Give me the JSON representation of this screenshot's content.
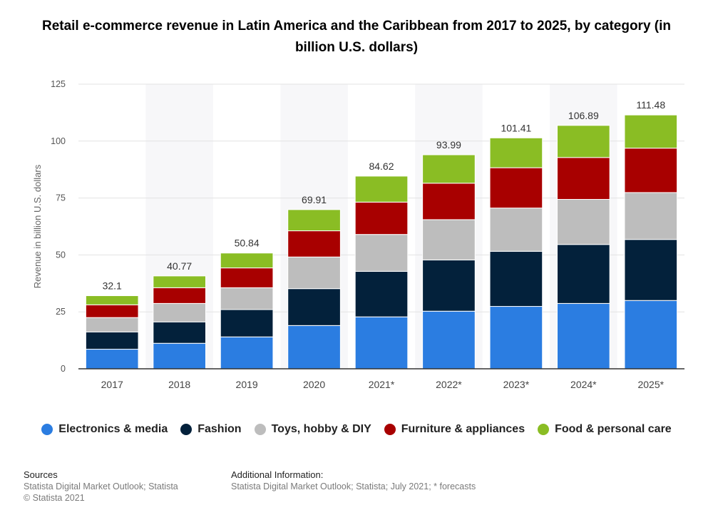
{
  "title": "Retail e-commerce revenue in Latin America and the Caribbean from 2017 to 2025, by category (in billion U.S. dollars)",
  "footer": {
    "sources_heading": "Sources",
    "sources_line1": "Statista Digital Market Outlook; Statista",
    "sources_line2": "© Statista 2021",
    "info_heading": "Additional Information:",
    "info_line1": "Statista Digital Market Outlook; Statista; July 2021; * forecasts"
  },
  "chart_data": {
    "type": "bar",
    "stacked": true,
    "ylabel": "Revenue in billion U.S. dollars",
    "xlabel": "",
    "ylim": [
      0,
      125
    ],
    "yticks": [
      0,
      25,
      50,
      75,
      100,
      125
    ],
    "grid": true,
    "legend_position": "bottom",
    "categories": [
      "2017",
      "2018",
      "2019",
      "2020",
      "2021*",
      "2022*",
      "2023*",
      "2024*",
      "2025*"
    ],
    "totals": [
      32.1,
      40.77,
      50.84,
      69.91,
      84.62,
      93.99,
      101.41,
      106.89,
      111.48
    ],
    "total_labels": [
      "32.1",
      "40.77",
      "50.84",
      "69.91",
      "84.62",
      "93.99",
      "101.41",
      "106.89",
      "111.48"
    ],
    "series": [
      {
        "name": "Electronics & media",
        "color": "#2b7de1",
        "values": [
          8.6,
          11.2,
          14.0,
          19.0,
          22.8,
          25.3,
          27.4,
          28.7,
          30.0
        ]
      },
      {
        "name": "Fashion",
        "color": "#03213b",
        "values": [
          7.6,
          9.4,
          12.0,
          16.2,
          20.0,
          22.5,
          24.2,
          25.9,
          26.8
        ]
      },
      {
        "name": "Toys, hobby & DIY",
        "color": "#bdbdbd",
        "values": [
          6.3,
          8.1,
          9.6,
          13.9,
          16.2,
          17.7,
          19.0,
          19.8,
          20.6
        ]
      },
      {
        "name": "Furniture & appliances",
        "color": "#a80000",
        "values": [
          5.6,
          6.9,
          8.7,
          11.5,
          14.2,
          16.0,
          17.7,
          18.4,
          19.5
        ]
      },
      {
        "name": "Food & personal care",
        "color": "#8abd24",
        "values": [
          4.0,
          5.17,
          6.54,
          9.31,
          11.42,
          12.49,
          13.11,
          14.09,
          14.58
        ]
      }
    ]
  }
}
